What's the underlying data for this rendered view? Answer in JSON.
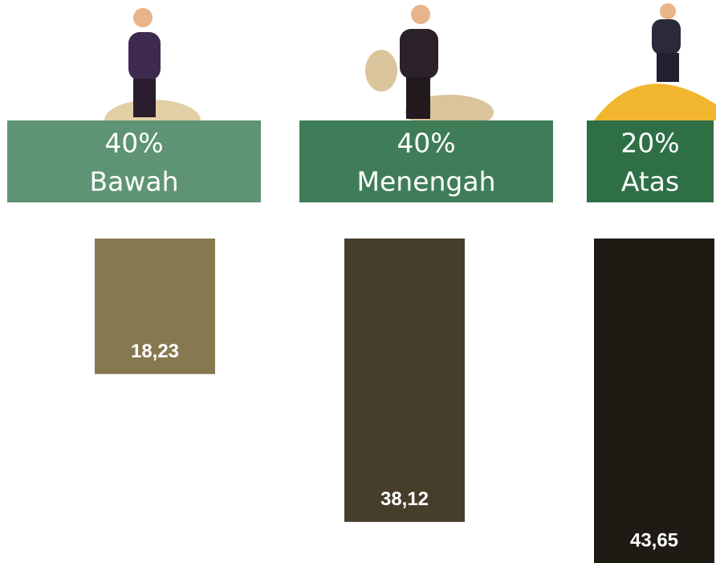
{
  "chart_data": {
    "type": "bar",
    "categories": [
      "Bawah",
      "Menengah",
      "Atas"
    ],
    "shares": [
      {
        "value": 40,
        "label": "40%"
      },
      {
        "value": 40,
        "label": "40%"
      },
      {
        "value": 20,
        "label": "20%"
      }
    ],
    "header_colors": [
      "#5e9473",
      "#3f7d58",
      "#2e6f46"
    ],
    "values": [
      18.23,
      38.12,
      43.65
    ],
    "value_labels": [
      "18,23",
      "38,12",
      "43,65"
    ],
    "colors": [
      "#877850",
      "#463d2b",
      "#1e1b14"
    ]
  }
}
